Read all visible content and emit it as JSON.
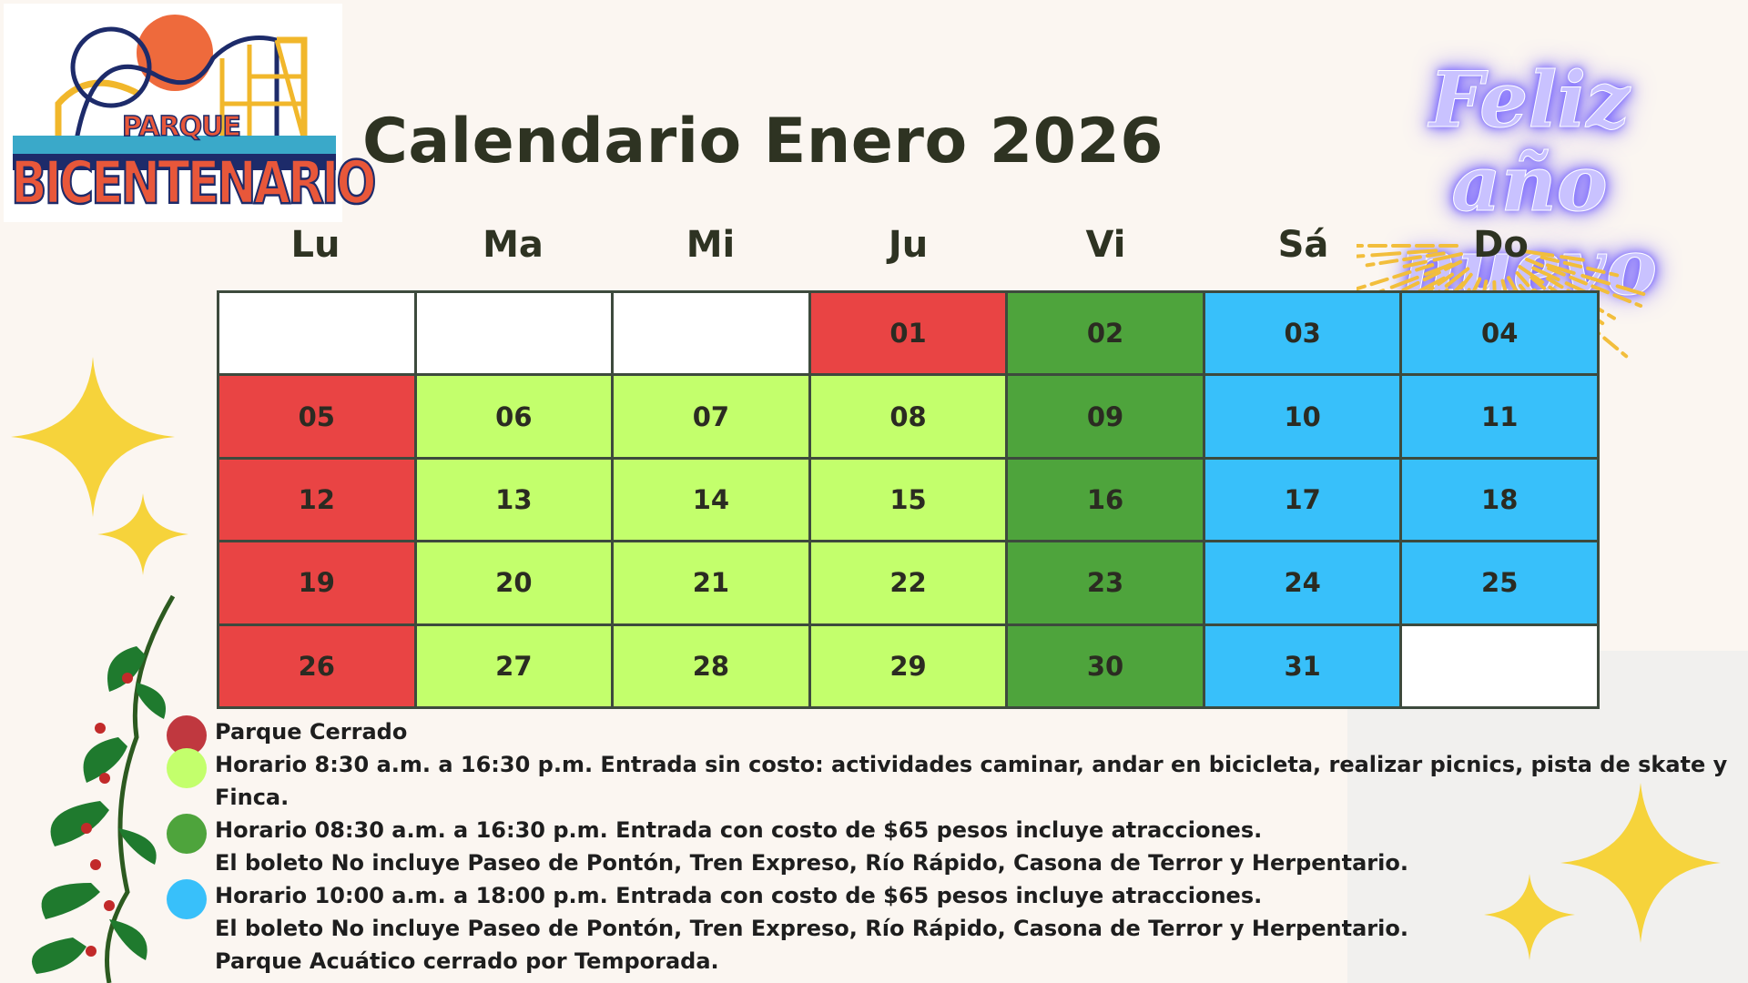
{
  "logo": {
    "top_text": "PARQUE",
    "main_text": "BICENTENARIO"
  },
  "title": "Calendario Enero 2026",
  "greeting": {
    "line1": "Feliz año",
    "line2": "nuevo"
  },
  "colors": {
    "closed": "#e94444",
    "free": "#c3ff6c",
    "paid": "#4ea43c",
    "weekend": "#38c0fa",
    "empty": "#ffffff",
    "legend_closed": "#c0383f",
    "legend_free": "#c3ff6c",
    "legend_paid": "#4ea43c",
    "legend_weekend": "#38c0fa"
  },
  "weekdays": [
    "Lu",
    "Ma",
    "Mi",
    "Ju",
    "Vi",
    "Sá",
    "Do"
  ],
  "weeks": [
    [
      {
        "day": "",
        "status": "empty"
      },
      {
        "day": "",
        "status": "empty"
      },
      {
        "day": "",
        "status": "empty"
      },
      {
        "day": "01",
        "status": "closed"
      },
      {
        "day": "02",
        "status": "paid"
      },
      {
        "day": "03",
        "status": "weekend"
      },
      {
        "day": "04",
        "status": "weekend"
      }
    ],
    [
      {
        "day": "05",
        "status": "closed"
      },
      {
        "day": "06",
        "status": "free"
      },
      {
        "day": "07",
        "status": "free"
      },
      {
        "day": "08",
        "status": "free"
      },
      {
        "day": "09",
        "status": "paid"
      },
      {
        "day": "10",
        "status": "weekend"
      },
      {
        "day": "11",
        "status": "weekend"
      }
    ],
    [
      {
        "day": "12",
        "status": "closed"
      },
      {
        "day": "13",
        "status": "free"
      },
      {
        "day": "14",
        "status": "free"
      },
      {
        "day": "15",
        "status": "free"
      },
      {
        "day": "16",
        "status": "paid"
      },
      {
        "day": "17",
        "status": "weekend"
      },
      {
        "day": "18",
        "status": "weekend"
      }
    ],
    [
      {
        "day": "19",
        "status": "closed"
      },
      {
        "day": "20",
        "status": "free"
      },
      {
        "day": "21",
        "status": "free"
      },
      {
        "day": "22",
        "status": "free"
      },
      {
        "day": "23",
        "status": "paid"
      },
      {
        "day": "24",
        "status": "weekend"
      },
      {
        "day": "25",
        "status": "weekend"
      }
    ],
    [
      {
        "day": "26",
        "status": "closed"
      },
      {
        "day": "27",
        "status": "free"
      },
      {
        "day": "28",
        "status": "free"
      },
      {
        "day": "29",
        "status": "free"
      },
      {
        "day": "30",
        "status": "paid"
      },
      {
        "day": "31",
        "status": "weekend"
      },
      {
        "day": "",
        "status": "empty"
      }
    ]
  ],
  "legend": [
    {
      "key": "closed",
      "lines": [
        "Parque Cerrado"
      ]
    },
    {
      "key": "free",
      "lines": [
        "Horario 8:30 a.m. a 16:30 p.m. Entrada sin costo: actividades caminar, andar en bicicleta, realizar picnics, pista de skate y Finca."
      ]
    },
    {
      "key": "paid",
      "lines": [
        "Horario 08:30 a.m. a 16:30 p.m. Entrada con costo de $65 pesos incluye atracciones.",
        "El boleto No incluye Paseo de Pontón, Tren Expreso, Río Rápido, Casona de Terror y Herpentario."
      ]
    },
    {
      "key": "weekend",
      "lines": [
        "Horario 10:00 a.m. a 18:00 p.m. Entrada con costo de $65 pesos incluye atracciones.",
        "El boleto No incluye Paseo de Pontón, Tren Expreso, Río Rápido, Casona de Terror y Herpentario.",
        "Parque Acuático cerrado por Temporada."
      ]
    }
  ],
  "decorations": [
    "roller-coaster-icon",
    "sun-icon",
    "sparkle-star-icon",
    "firework-icon",
    "holly-leaves-icon"
  ]
}
